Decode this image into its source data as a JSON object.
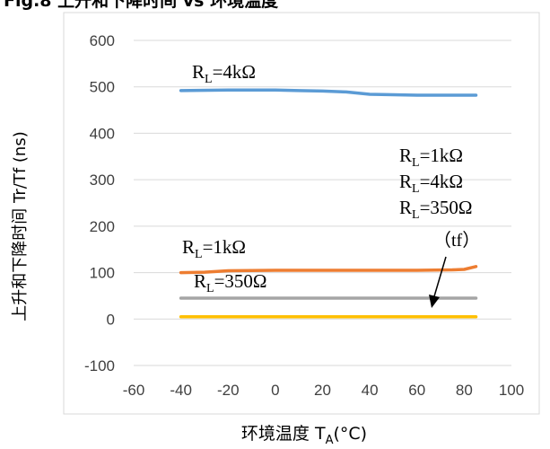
{
  "chart_data": {
    "type": "line",
    "title": "Fig.8  上升和下降时间 vs 环境温度",
    "xlabel": {
      "main": "环境温度 T",
      "sub": "A",
      "tail": "(°C)"
    },
    "ylabel": "上升和下降时间 Tr/Tf (ns)",
    "xlim": [
      -60,
      100
    ],
    "ylim": [
      -100,
      600
    ],
    "x_ticks": [
      -60,
      -40,
      -20,
      0,
      20,
      40,
      60,
      80,
      100
    ],
    "y_ticks": [
      -100,
      0,
      100,
      200,
      300,
      400,
      500,
      600
    ],
    "grid": "horizontal",
    "series": [
      {
        "color": "#5B9BD5",
        "points": [
          [
            -40,
            492
          ],
          [
            -20,
            493
          ],
          [
            0,
            493
          ],
          [
            10,
            492
          ],
          [
            20,
            491
          ],
          [
            30,
            489
          ],
          [
            40,
            484
          ],
          [
            50,
            483
          ],
          [
            60,
            482
          ],
          [
            70,
            482
          ],
          [
            80,
            482
          ],
          [
            85,
            482
          ]
        ]
      },
      {
        "color": "#ED7D31",
        "points": [
          [
            -40,
            100
          ],
          [
            -30,
            101
          ],
          [
            -20,
            104
          ],
          [
            0,
            105
          ],
          [
            20,
            105
          ],
          [
            40,
            105
          ],
          [
            60,
            105
          ],
          [
            75,
            106
          ],
          [
            80,
            107
          ],
          [
            85,
            113
          ]
        ]
      },
      {
        "color": "#A5A5A5",
        "points": [
          [
            -40,
            45
          ],
          [
            0,
            45
          ],
          [
            40,
            45
          ],
          [
            85,
            45
          ]
        ]
      },
      {
        "color": "#FFC000",
        "points": [
          [
            -40,
            5
          ],
          [
            0,
            5
          ],
          [
            40,
            5
          ],
          [
            85,
            5
          ]
        ]
      }
    ],
    "annotations": [
      {
        "id": "rl4k",
        "lines": [
          {
            "pre": "R",
            "sub": "L",
            "post": "=4kΩ"
          }
        ]
      },
      {
        "id": "rl1k",
        "lines": [
          {
            "pre": "R",
            "sub": "L",
            "post": "=1kΩ"
          }
        ]
      },
      {
        "id": "rl350",
        "lines": [
          {
            "pre": "R",
            "sub": "L",
            "post": "=350Ω"
          }
        ]
      },
      {
        "id": "tf-group",
        "lines": [
          {
            "pre": "R",
            "sub": "L",
            "post": "=1kΩ"
          },
          {
            "pre": "R",
            "sub": "L",
            "post": "=4kΩ"
          },
          {
            "pre": "R",
            "sub": "L",
            "post": "=350Ω"
          }
        ]
      },
      {
        "id": "tf-label",
        "text": "（tf）"
      }
    ]
  }
}
